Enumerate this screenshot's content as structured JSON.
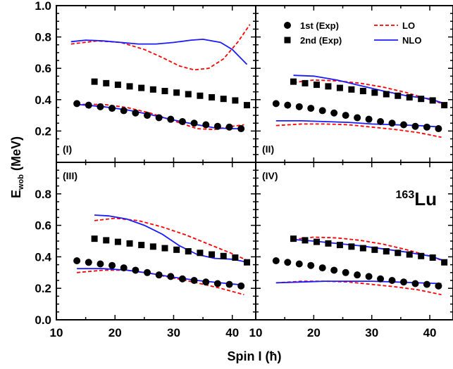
{
  "chart_data": {
    "type": "scatter",
    "xlabel": "Spin I (ħ)",
    "ylabel_main": "E",
    "ylabel_sub": "wob",
    "ylabel_unit": " (MeV)",
    "nuclide_mass": "163",
    "nuclide_symbol": "Lu",
    "xlim": [
      10,
      44
    ],
    "ylim": [
      0,
      1.0
    ],
    "x_ticks": [
      "10",
      "20",
      "30",
      "40"
    ],
    "y_ticks_top": [
      "0.2",
      "0.4",
      "0.6",
      "0.8",
      "1.0"
    ],
    "y_ticks_bottom": [
      "0.0",
      "0.2",
      "0.4",
      "0.6",
      "0.8"
    ],
    "legend": {
      "placement": "top-right of panel II",
      "items": [
        {
          "key": "exp1",
          "label": "1st (Exp)"
        },
        {
          "key": "exp2",
          "label": "2nd (Exp)"
        },
        {
          "key": "lo",
          "label": "LO"
        },
        {
          "key": "nlo",
          "label": "NLO"
        }
      ]
    },
    "colors": {
      "exp": "#000000",
      "lo": "#ff0000",
      "nlo": "#1a1aff"
    },
    "exp_1st": {
      "x": [
        13.5,
        15.5,
        17.5,
        19.5,
        21.5,
        23.5,
        25.5,
        27.5,
        29.5,
        31.5,
        33.5,
        35.5,
        37.5,
        39.5,
        41.5
      ],
      "y": [
        0.375,
        0.365,
        0.355,
        0.345,
        0.33,
        0.315,
        0.3,
        0.285,
        0.275,
        0.26,
        0.25,
        0.24,
        0.23,
        0.225,
        0.215
      ]
    },
    "exp_2nd": {
      "x": [
        16.5,
        18.5,
        20.5,
        22.5,
        24.5,
        26.5,
        28.5,
        30.5,
        32.5,
        34.5,
        36.5,
        38.5,
        40.5,
        42.5
      ],
      "y": [
        0.515,
        0.505,
        0.495,
        0.485,
        0.475,
        0.465,
        0.455,
        0.445,
        0.435,
        0.425,
        0.415,
        0.405,
        0.395,
        0.365
      ]
    },
    "panels": [
      {
        "label": "(I)",
        "lo_1st": {
          "x": [
            13.5,
            18,
            22,
            26,
            30,
            34,
            37,
            40,
            42
          ],
          "y": [
            0.37,
            0.37,
            0.35,
            0.315,
            0.265,
            0.215,
            0.21,
            0.23,
            0.24
          ]
        },
        "lo_2nd": {
          "x": [
            12.5,
            17,
            21,
            25,
            28,
            31,
            33.5,
            36,
            38.5,
            41,
            43
          ],
          "y": [
            0.755,
            0.775,
            0.765,
            0.72,
            0.67,
            0.615,
            0.59,
            0.6,
            0.66,
            0.77,
            0.88
          ]
        },
        "nlo_1st": {
          "x": [
            13.5,
            18,
            22,
            26,
            30,
            34,
            37,
            40,
            42
          ],
          "y": [
            0.37,
            0.355,
            0.335,
            0.305,
            0.27,
            0.24,
            0.22,
            0.215,
            0.215
          ]
        },
        "nlo_2nd": {
          "x": [
            12.5,
            15,
            18,
            21,
            24,
            27,
            30,
            33,
            35,
            38,
            40,
            42.5
          ],
          "y": [
            0.77,
            0.78,
            0.775,
            0.765,
            0.755,
            0.755,
            0.765,
            0.78,
            0.785,
            0.765,
            0.72,
            0.625
          ]
        }
      },
      {
        "label": "(II)",
        "lo_1st": {
          "x": [
            13.5,
            18,
            22,
            26,
            30,
            34,
            38,
            42
          ],
          "y": [
            0.235,
            0.245,
            0.245,
            0.24,
            0.225,
            0.21,
            0.19,
            0.16
          ]
        },
        "lo_2nd": {
          "x": [
            16.5,
            20,
            24,
            28,
            32,
            36,
            40,
            43
          ],
          "y": [
            0.51,
            0.525,
            0.52,
            0.505,
            0.48,
            0.445,
            0.4,
            0.365
          ]
        },
        "nlo_1st": {
          "x": [
            13.5,
            18,
            22,
            26,
            30,
            34,
            38,
            42
          ],
          "y": [
            0.265,
            0.265,
            0.26,
            0.255,
            0.245,
            0.24,
            0.235,
            0.225
          ]
        },
        "nlo_2nd": {
          "x": [
            16.5,
            20,
            24,
            28,
            32,
            36,
            40,
            43
          ],
          "y": [
            0.555,
            0.55,
            0.525,
            0.49,
            0.455,
            0.425,
            0.405,
            0.37
          ]
        }
      },
      {
        "label": "(III)",
        "lo_1st": {
          "x": [
            13.5,
            18,
            22,
            26,
            30,
            34,
            38,
            42
          ],
          "y": [
            0.3,
            0.315,
            0.315,
            0.295,
            0.265,
            0.235,
            0.2,
            0.16
          ]
        },
        "lo_2nd": {
          "x": [
            16.5,
            20,
            24,
            28,
            32,
            36,
            40,
            43
          ],
          "y": [
            0.63,
            0.645,
            0.63,
            0.59,
            0.54,
            0.48,
            0.42,
            0.37
          ]
        },
        "nlo_1st": {
          "x": [
            13.5,
            18,
            22,
            26,
            30,
            34,
            38,
            42
          ],
          "y": [
            0.325,
            0.325,
            0.315,
            0.295,
            0.27,
            0.25,
            0.235,
            0.22
          ]
        },
        "nlo_2nd": {
          "x": [
            16.5,
            19,
            22,
            25,
            28,
            31,
            34,
            37,
            40,
            42
          ],
          "y": [
            0.665,
            0.66,
            0.64,
            0.6,
            0.545,
            0.47,
            0.415,
            0.39,
            0.385,
            0.37
          ]
        }
      },
      {
        "label": "(IV)",
        "lo_1st": {
          "x": [
            13.5,
            18,
            22,
            26,
            30,
            34,
            38,
            42
          ],
          "y": [
            0.235,
            0.245,
            0.245,
            0.24,
            0.225,
            0.21,
            0.19,
            0.16
          ]
        },
        "lo_2nd": {
          "x": [
            16.5,
            20,
            24,
            28,
            32,
            36,
            40,
            43
          ],
          "y": [
            0.51,
            0.525,
            0.52,
            0.505,
            0.48,
            0.445,
            0.405,
            0.365
          ]
        },
        "nlo_1st": {
          "x": [
            13.5,
            18,
            22,
            26,
            30,
            34,
            38,
            42
          ],
          "y": [
            0.235,
            0.24,
            0.245,
            0.245,
            0.245,
            0.24,
            0.235,
            0.23
          ]
        },
        "nlo_2nd": {
          "x": [
            16.5,
            20,
            24,
            28,
            32,
            36,
            40,
            43
          ],
          "y": [
            0.51,
            0.5,
            0.485,
            0.47,
            0.45,
            0.43,
            0.405,
            0.37
          ]
        }
      }
    ]
  }
}
